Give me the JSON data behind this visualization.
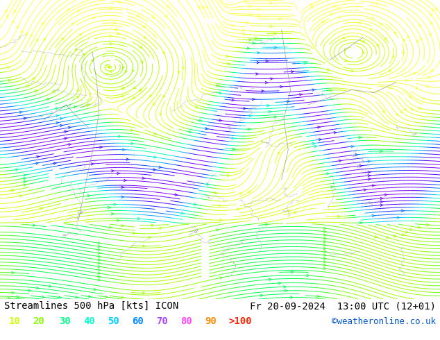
{
  "title_left": "Streamlines 500 hPa [kts] ICON",
  "title_right": "Fr 20-09-2024  13:00 UTC (12+01)",
  "credit": "©weatheronline.co.uk",
  "legend_values": [
    "10",
    "20",
    "30",
    "40",
    "50",
    "60",
    "70",
    "80",
    "90",
    ">100"
  ],
  "legend_colors": [
    "#ccff00",
    "#88ff00",
    "#00ff88",
    "#00ffcc",
    "#00ccff",
    "#0088ff",
    "#aa44ff",
    "#ff44ff",
    "#ff8800",
    "#ff2200"
  ],
  "bg_color": "#c8ff88",
  "map_bg": "#c8ff88",
  "land_color": "#ffffff",
  "font_color": "#000000",
  "font_size_title": 10,
  "font_size_legend": 10,
  "figsize": [
    6.34,
    4.9
  ],
  "dpi": 100,
  "speed_colors": [
    [
      0.0,
      "#ffff44"
    ],
    [
      0.08,
      "#ccff00"
    ],
    [
      0.18,
      "#88ff00"
    ],
    [
      0.28,
      "#00ff44"
    ],
    [
      0.38,
      "#00ff88"
    ],
    [
      0.48,
      "#00ffcc"
    ],
    [
      0.55,
      "#00ccff"
    ],
    [
      0.65,
      "#0088ff"
    ],
    [
      0.75,
      "#0044ff"
    ],
    [
      0.85,
      "#4400ff"
    ],
    [
      1.0,
      "#8800ff"
    ]
  ]
}
